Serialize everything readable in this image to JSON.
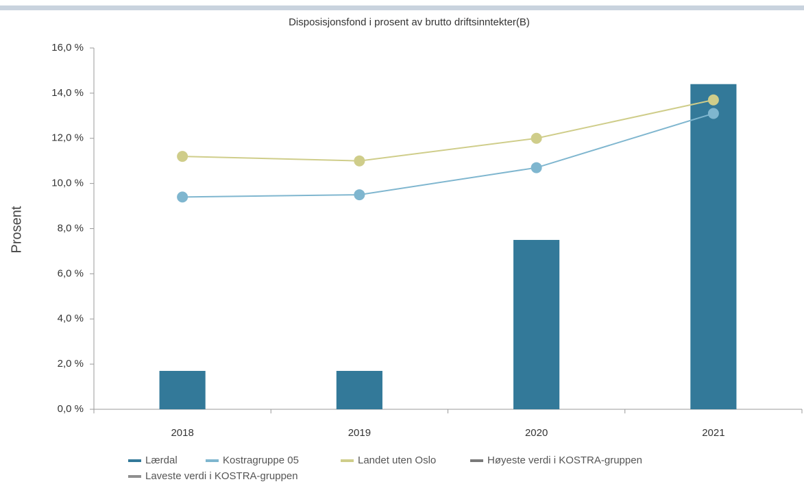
{
  "chart_data": {
    "type": "bar",
    "title": "Disposisjonsfond i prosent av brutto driftsinntekter(B)",
    "y_label": "Prosent",
    "categories": [
      "2018",
      "2019",
      "2020",
      "2021"
    ],
    "ylim": [
      0,
      16
    ],
    "yticks": [
      {
        "value": 0,
        "label": "0,0 %"
      },
      {
        "value": 2,
        "label": "2,0 %"
      },
      {
        "value": 4,
        "label": "4,0 %"
      },
      {
        "value": 6,
        "label": "6,0 %"
      },
      {
        "value": 8,
        "label": "8,0 %"
      },
      {
        "value": 10,
        "label": "10,0 %"
      },
      {
        "value": 12,
        "label": "12,0 %"
      },
      {
        "value": 14,
        "label": "14,0 %"
      },
      {
        "value": 16,
        "label": "16,0 %"
      }
    ],
    "series": [
      {
        "name": "Lærdal",
        "type": "bar",
        "color": "#337999",
        "values": [
          1.7,
          1.7,
          7.5,
          14.4
        ]
      },
      {
        "name": "Kostragruppe 05",
        "type": "line",
        "color": "#7fb6cf",
        "values": [
          9.4,
          9.5,
          10.7,
          13.1
        ]
      },
      {
        "name": "Landet uten Oslo",
        "type": "line",
        "color": "#cfcd8a",
        "values": [
          11.2,
          11.0,
          12.0,
          13.7
        ]
      },
      {
        "name": "Høyeste verdi i KOSTRA-gruppen",
        "type": "line",
        "color": "#7a7a7a",
        "values": [
          null,
          null,
          null,
          null
        ]
      },
      {
        "name": "Laveste verdi i KOSTRA-gruppen",
        "type": "line",
        "color": "#8f8f8f",
        "values": [
          null,
          null,
          null,
          null
        ]
      }
    ]
  }
}
